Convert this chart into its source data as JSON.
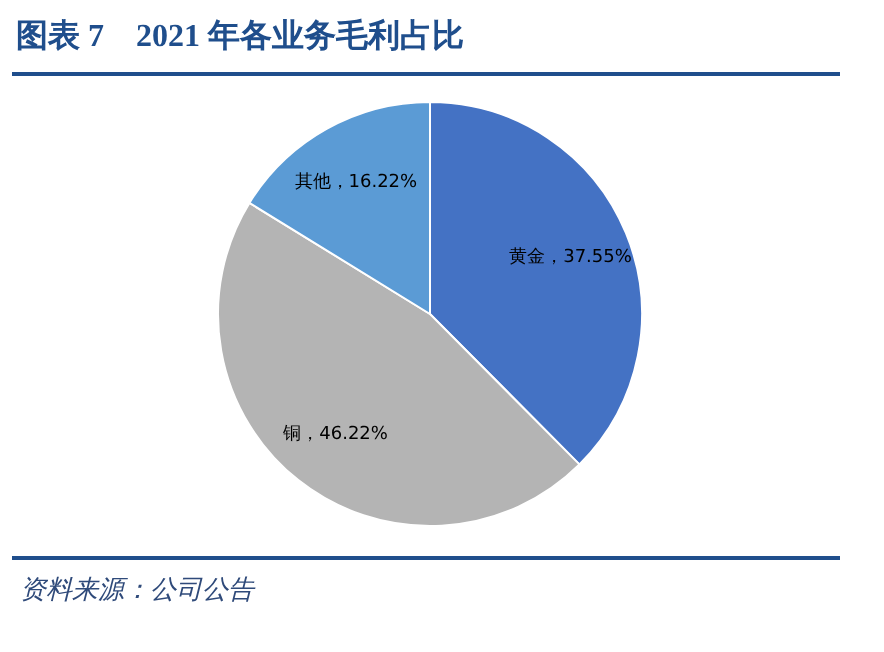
{
  "chart_data": {
    "type": "pie",
    "title": "图表 7　2021 年各业务毛利占比",
    "categories": [
      "黄金",
      "铜",
      "其他"
    ],
    "values": [
      37.55,
      46.22,
      16.22
    ],
    "colors": [
      "#4472c4",
      "#b4b4b4",
      "#5b9bd5"
    ],
    "value_labels": [
      "37.55%",
      "46.22%",
      "16.22%"
    ],
    "annotations": [
      "资料来源：公司公告"
    ]
  }
}
